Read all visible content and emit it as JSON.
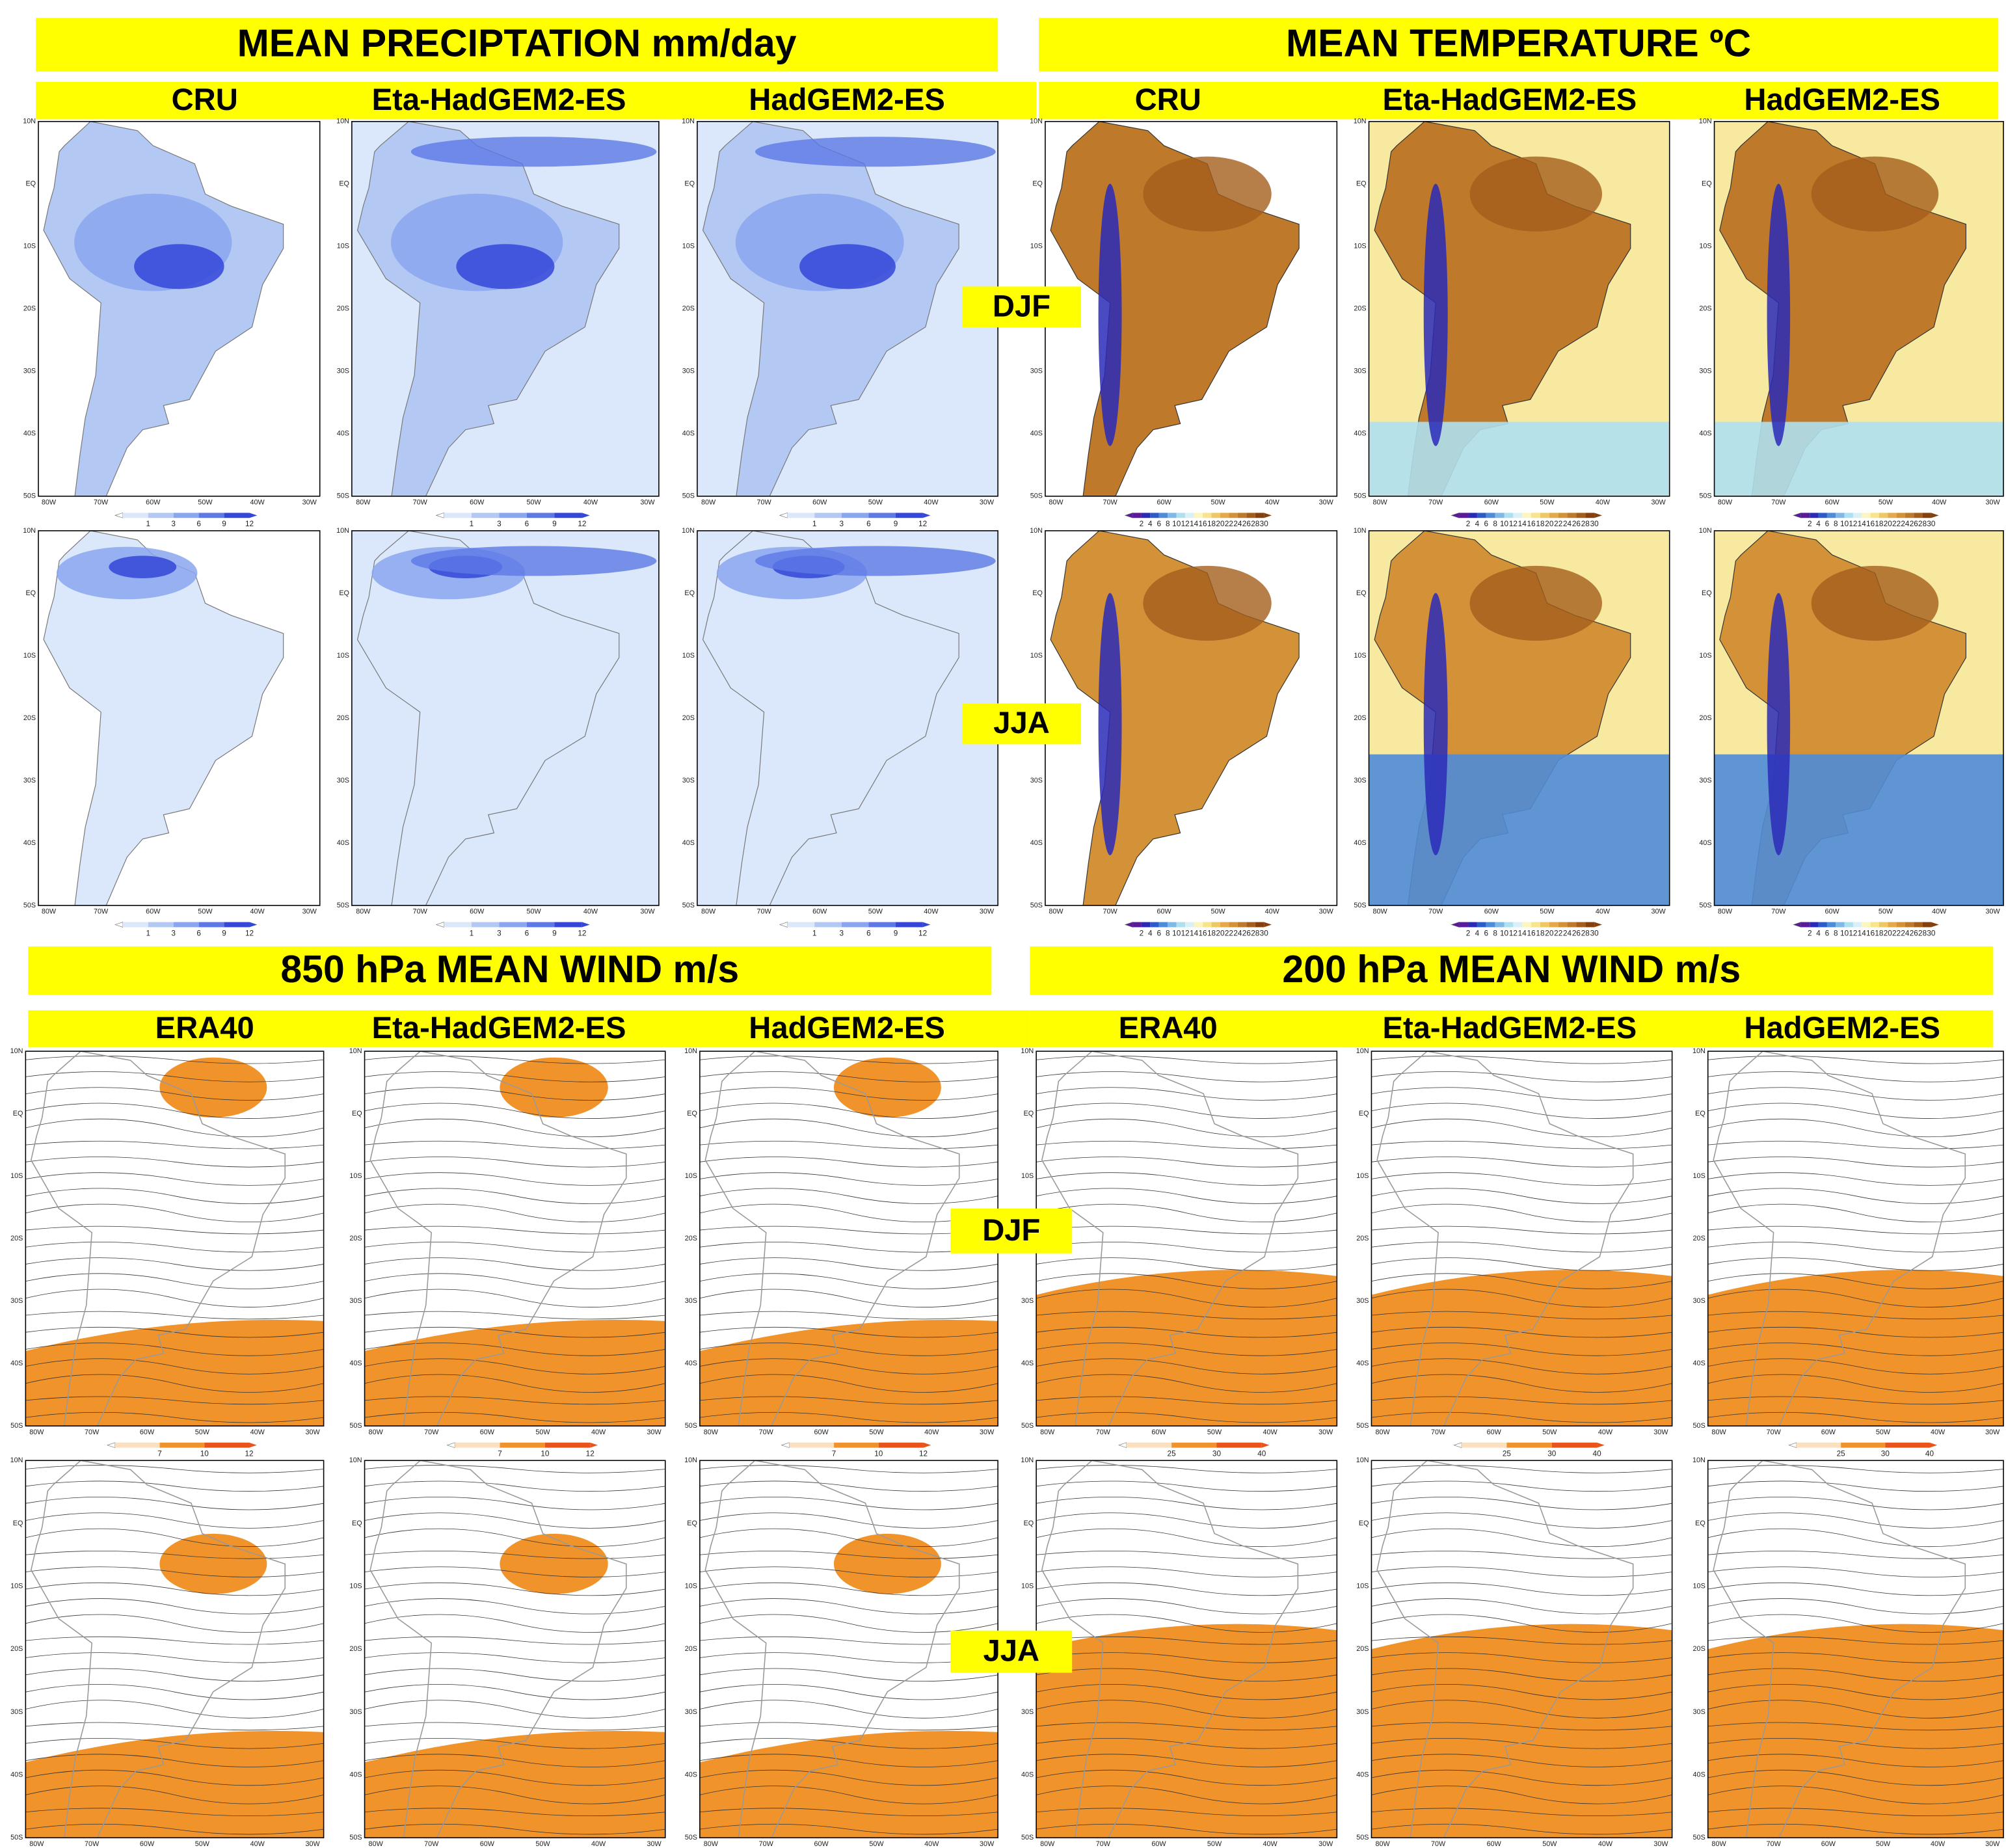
{
  "top_sections": [
    {
      "title": "MEAN PRECIPTATION  mm/day",
      "columns": [
        "CRU",
        "Eta-HadGEM2-ES",
        "HadGEM2-ES"
      ],
      "colorbar_labels": [
        "1",
        "3",
        "6",
        "9",
        "12"
      ]
    },
    {
      "title": "MEAN TEMPERATURE  ºC",
      "columns": [
        "CRU",
        "Eta-HadGEM2-ES",
        "HadGEM2-ES"
      ],
      "colorbar_labels": [
        "2",
        "4",
        "6",
        "8",
        "10",
        "12",
        "14",
        "16",
        "18",
        "20",
        "22",
        "24",
        "26",
        "28",
        "30"
      ]
    }
  ],
  "bottom_sections": [
    {
      "title": "850 hPa MEAN WIND  m/s",
      "columns": [
        "ERA40",
        "Eta-HadGEM2-ES",
        "HadGEM2-ES"
      ],
      "colorbar_labels": [
        "7",
        "10",
        "12"
      ]
    },
    {
      "title": "200 hPa MEAN WIND  m/s",
      "columns": [
        "ERA40",
        "Eta-HadGEM2-ES",
        "HadGEM2-ES"
      ],
      "colorbar_labels": [
        "25",
        "30",
        "40"
      ]
    }
  ],
  "seasons": [
    "DJF",
    "JJA"
  ],
  "lat_labels": [
    "10N",
    "EQ",
    "10S",
    "20S",
    "30S",
    "40S",
    "50S"
  ],
  "lon_labels": [
    "80W",
    "70W",
    "60W",
    "50W",
    "40W",
    "30W"
  ]
}
